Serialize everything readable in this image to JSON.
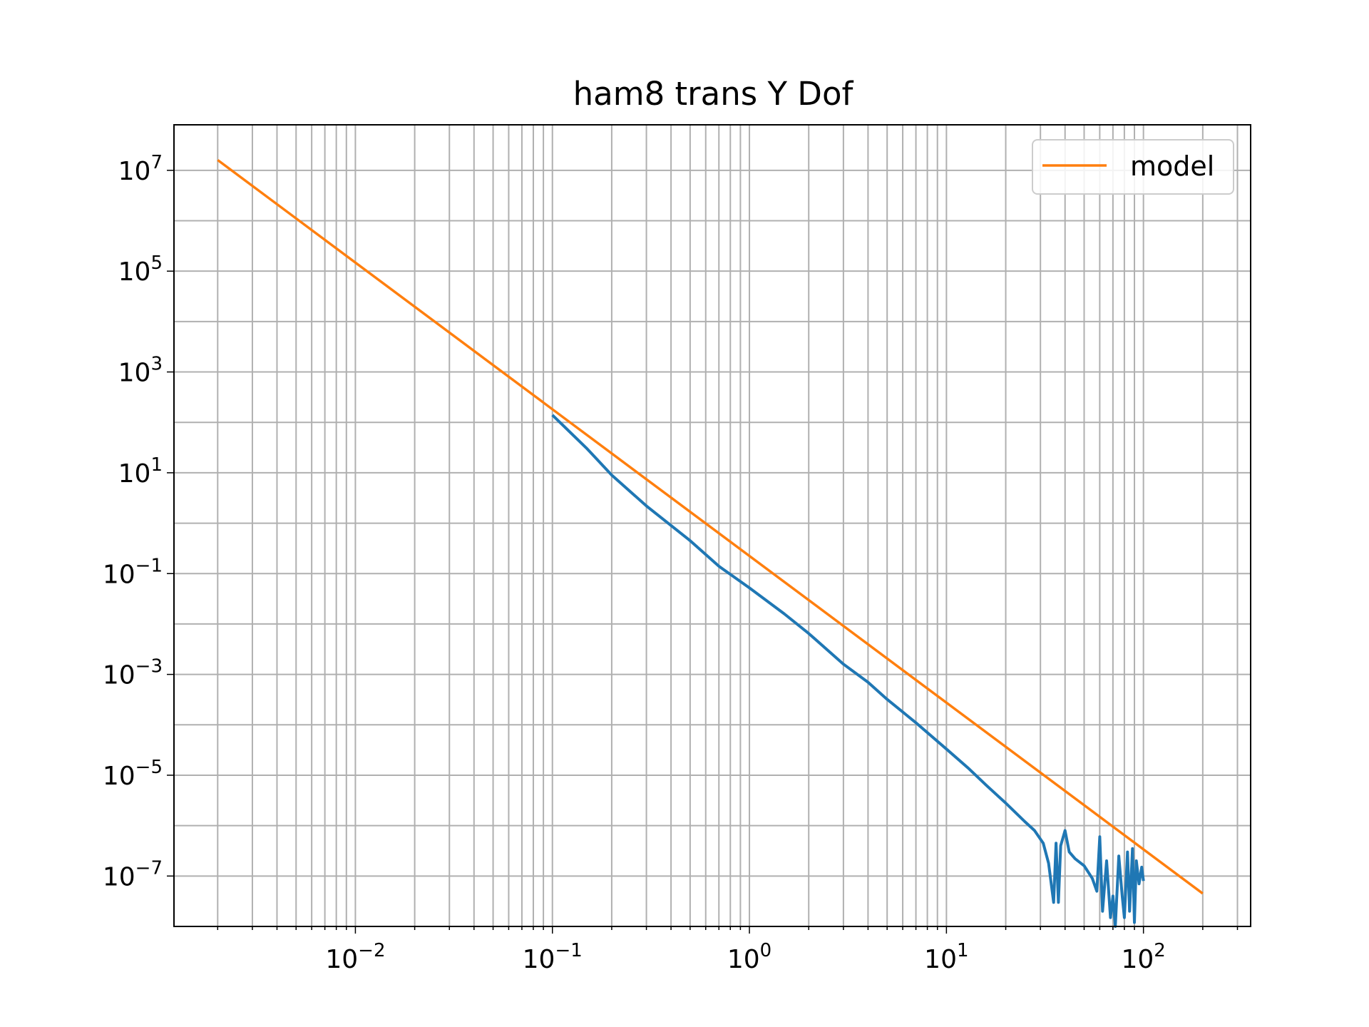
{
  "chart_data": {
    "type": "line",
    "title": "ham8 trans Y Dof",
    "xscale": "log",
    "yscale": "log",
    "xlim": [
      0.0012,
      350
    ],
    "ylim": [
      1e-08,
      80000000.0
    ],
    "x_ticks": [
      {
        "value": 0.01,
        "base": "10",
        "exp": "−2"
      },
      {
        "value": 0.1,
        "base": "10",
        "exp": "−1"
      },
      {
        "value": 1,
        "base": "10",
        "exp": "0"
      },
      {
        "value": 10,
        "base": "10",
        "exp": "1"
      },
      {
        "value": 100,
        "base": "10",
        "exp": "2"
      }
    ],
    "y_ticks": [
      {
        "value": 10000000.0,
        "base": "10",
        "exp": "7"
      },
      {
        "value": 100000.0,
        "base": "10",
        "exp": "5"
      },
      {
        "value": 1000.0,
        "base": "10",
        "exp": "3"
      },
      {
        "value": 10,
        "base": "10",
        "exp": "1"
      },
      {
        "value": 0.1,
        "base": "10",
        "exp": "−1"
      },
      {
        "value": 0.001,
        "base": "10",
        "exp": "−3"
      },
      {
        "value": 1e-05,
        "base": "10",
        "exp": "−5"
      },
      {
        "value": 1e-07,
        "base": "10",
        "exp": "−7"
      }
    ],
    "grid": "major and minor",
    "legend": {
      "placement": "top-right",
      "entries": [
        {
          "label": "model",
          "color": "#ff7f0e"
        }
      ]
    },
    "series": [
      {
        "color": "#1f77b4",
        "x": [
          0.1,
          0.15,
          0.2,
          0.3,
          0.5,
          0.7,
          1.0,
          1.5,
          2.0,
          3.0,
          4.0,
          5.0,
          7.0,
          10,
          13,
          16,
          20,
          25,
          28,
          31,
          33,
          35,
          36,
          37,
          38,
          40,
          42,
          45,
          50,
          55,
          58,
          60,
          62,
          65,
          68,
          70,
          72,
          75,
          78,
          80,
          83,
          85,
          88,
          90,
          92,
          95,
          98,
          100
        ],
        "y": [
          140,
          30,
          9,
          2.2,
          0.45,
          0.14,
          0.052,
          0.016,
          0.0065,
          0.0016,
          0.0007,
          0.00032,
          0.00011,
          3.3e-05,
          1.35e-05,
          6.2e-06,
          2.8e-06,
          1.2e-06,
          8e-07,
          4.5e-07,
          1.8e-07,
          3e-08,
          4.5e-07,
          3e-08,
          4e-07,
          8e-07,
          3e-07,
          2.2e-07,
          1.6e-07,
          9e-08,
          5e-08,
          6e-07,
          2e-08,
          2e-07,
          1.5e-08,
          4e-08,
          1e-08,
          2.5e-07,
          4e-08,
          1.5e-08,
          3e-07,
          2e-08,
          3.5e-07,
          1.2e-08,
          2e-07,
          7e-08,
          1.5e-07,
          8e-08
        ]
      },
      {
        "name": "model",
        "color": "#ff7f0e",
        "x": [
          0.002,
          200
        ],
        "y": [
          16000000.0,
          4.5e-08
        ]
      }
    ]
  }
}
